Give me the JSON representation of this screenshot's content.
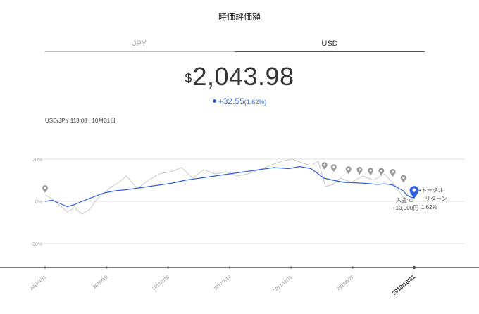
{
  "header": {
    "title": "時価評価額"
  },
  "tabs": [
    {
      "label": "JPY",
      "active": false
    },
    {
      "label": "USD",
      "active": true
    }
  ],
  "valuation": {
    "currency_symbol": "$",
    "amount": "2,043.98"
  },
  "change": {
    "amount": "+32.55",
    "percent": "(1.62%)"
  },
  "fx": {
    "label": "USD/JPY 113.08",
    "date": "10月31日"
  },
  "chart_data": {
    "type": "line",
    "x_ticks": [
      "2016/4/11",
      "2016/9/6",
      "2017/2/10",
      "2017/7/17",
      "2017/12/21",
      "2018/5/27",
      "2018/10/31"
    ],
    "y_ticks": [
      "20%",
      "0%",
      "-20%"
    ],
    "ylim": [
      -30,
      32
    ],
    "series": [
      {
        "color": "#2f5fe0",
        "x": [
          0,
          0.02,
          0.04,
          0.06,
          0.08,
          0.1,
          0.13,
          0.16,
          0.19,
          0.22,
          0.26,
          0.3,
          0.34,
          0.38,
          0.42,
          0.46,
          0.5,
          0.54,
          0.58,
          0.62,
          0.66,
          0.69,
          0.72,
          0.74,
          0.755,
          0.78,
          0.81,
          0.84,
          0.87,
          0.9,
          0.92,
          0.94,
          0.95,
          0.96,
          0.97,
          0.98,
          0.99,
          1.0
        ],
        "y": [
          0,
          0.5,
          -1,
          -2.5,
          -1.5,
          0,
          2,
          4,
          5,
          5.5,
          6.5,
          7.5,
          8.5,
          10,
          11,
          12,
          13,
          14,
          15,
          16,
          15.5,
          16.5,
          15.5,
          13,
          11,
          10,
          9,
          8.8,
          8.5,
          8,
          8.3,
          7.8,
          7,
          6,
          5,
          3,
          2,
          1.62
        ]
      },
      {
        "color": "#c8c8c8",
        "x": [
          0,
          0.02,
          0.04,
          0.06,
          0.08,
          0.1,
          0.12,
          0.14,
          0.16,
          0.18,
          0.2,
          0.22,
          0.25,
          0.28,
          0.31,
          0.34,
          0.37,
          0.4,
          0.43,
          0.46,
          0.49,
          0.52,
          0.55,
          0.58,
          0.61,
          0.64,
          0.67,
          0.7,
          0.72,
          0.74,
          0.76,
          0.78,
          0.8,
          0.83,
          0.86,
          0.89,
          0.92,
          0.95,
          0.97,
          0.99
        ],
        "y": [
          3,
          1,
          -2,
          -5,
          -3,
          -6,
          -4,
          1,
          4,
          7,
          9,
          12,
          6,
          10,
          13,
          14,
          16,
          11,
          15,
          13,
          14,
          12,
          13,
          15,
          17,
          19,
          20,
          18,
          17,
          19,
          7,
          8,
          11,
          9,
          12,
          10,
          13,
          7,
          2,
          0
        ]
      }
    ],
    "markers": [
      0.0,
      0.757,
      0.782,
      0.822,
      0.852,
      0.882,
      0.911,
      0.942,
      0.971,
      1.0
    ],
    "annotations": {
      "deposit_label": "入金",
      "deposit_amount": "+10,000円",
      "total_label": "トータル",
      "total_label2": "リターン",
      "total_value": "1.62%"
    }
  }
}
